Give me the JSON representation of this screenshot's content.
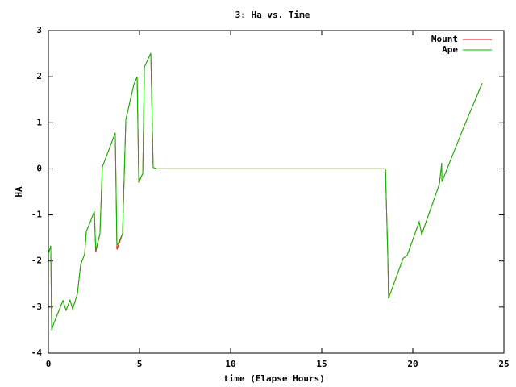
{
  "chart_data": {
    "type": "line",
    "title": "3: Ha vs. Time",
    "x_label": "time (Elapse Hours)",
    "y_label": "HA",
    "x": [
      0,
      0.13,
      0.18,
      0.3,
      0.8,
      0.97,
      1.19,
      1.33,
      1.59,
      1.77,
      1.99,
      2.08,
      2.3,
      2.52,
      2.6,
      2.83,
      2.96,
      3.67,
      3.76,
      4.07,
      4.25,
      4.69,
      4.87,
      4.96,
      5.18,
      5.27,
      5.62,
      5.75,
      5.97,
      18.5,
      18.63,
      18.67,
      19.47,
      19.69,
      20.35,
      20.49,
      21.46,
      21.59,
      21.6,
      22.79,
      23.81
    ],
    "series": [
      {
        "name": "Mount",
        "color": "#ff0000",
        "values": [
          -1.85,
          -1.67,
          -3.5,
          -3.35,
          -2.86,
          -3.07,
          -2.85,
          -3.04,
          -2.72,
          -2.08,
          -1.85,
          -1.36,
          -1.15,
          -0.92,
          -1.8,
          -1.41,
          0.04,
          0.78,
          -1.75,
          -1.41,
          1.07,
          1.83,
          2.0,
          -0.3,
          -0.1,
          2.21,
          2.51,
          0.03,
          0,
          0,
          -1.94,
          -2.81,
          -1.94,
          -1.88,
          -1.15,
          -1.42,
          -0.33,
          0.13,
          -0.28,
          0.9,
          1.86
        ]
      },
      {
        "name": "Ape",
        "color": "#00c000",
        "values": [
          -1.85,
          -1.67,
          -3.5,
          -3.35,
          -2.86,
          -3.07,
          -2.85,
          -3.04,
          -2.72,
          -2.08,
          -1.85,
          -1.36,
          -1.15,
          -0.92,
          -1.76,
          -1.41,
          0.04,
          0.78,
          -1.67,
          -1.41,
          1.07,
          1.83,
          2.0,
          -0.27,
          -0.1,
          2.21,
          2.51,
          0.03,
          0,
          0,
          -1.94,
          -2.81,
          -1.94,
          -1.88,
          -1.15,
          -1.42,
          -0.33,
          0.13,
          -0.28,
          0.9,
          1.86
        ]
      }
    ],
    "xlim": [
      0,
      25
    ],
    "xticks": [
      0,
      5,
      10,
      15,
      20,
      25
    ],
    "ylim": [
      -4,
      3
    ],
    "yticks": [
      -4,
      -3,
      -2,
      -1,
      0,
      1,
      2,
      3
    ],
    "legend": "upper right"
  }
}
